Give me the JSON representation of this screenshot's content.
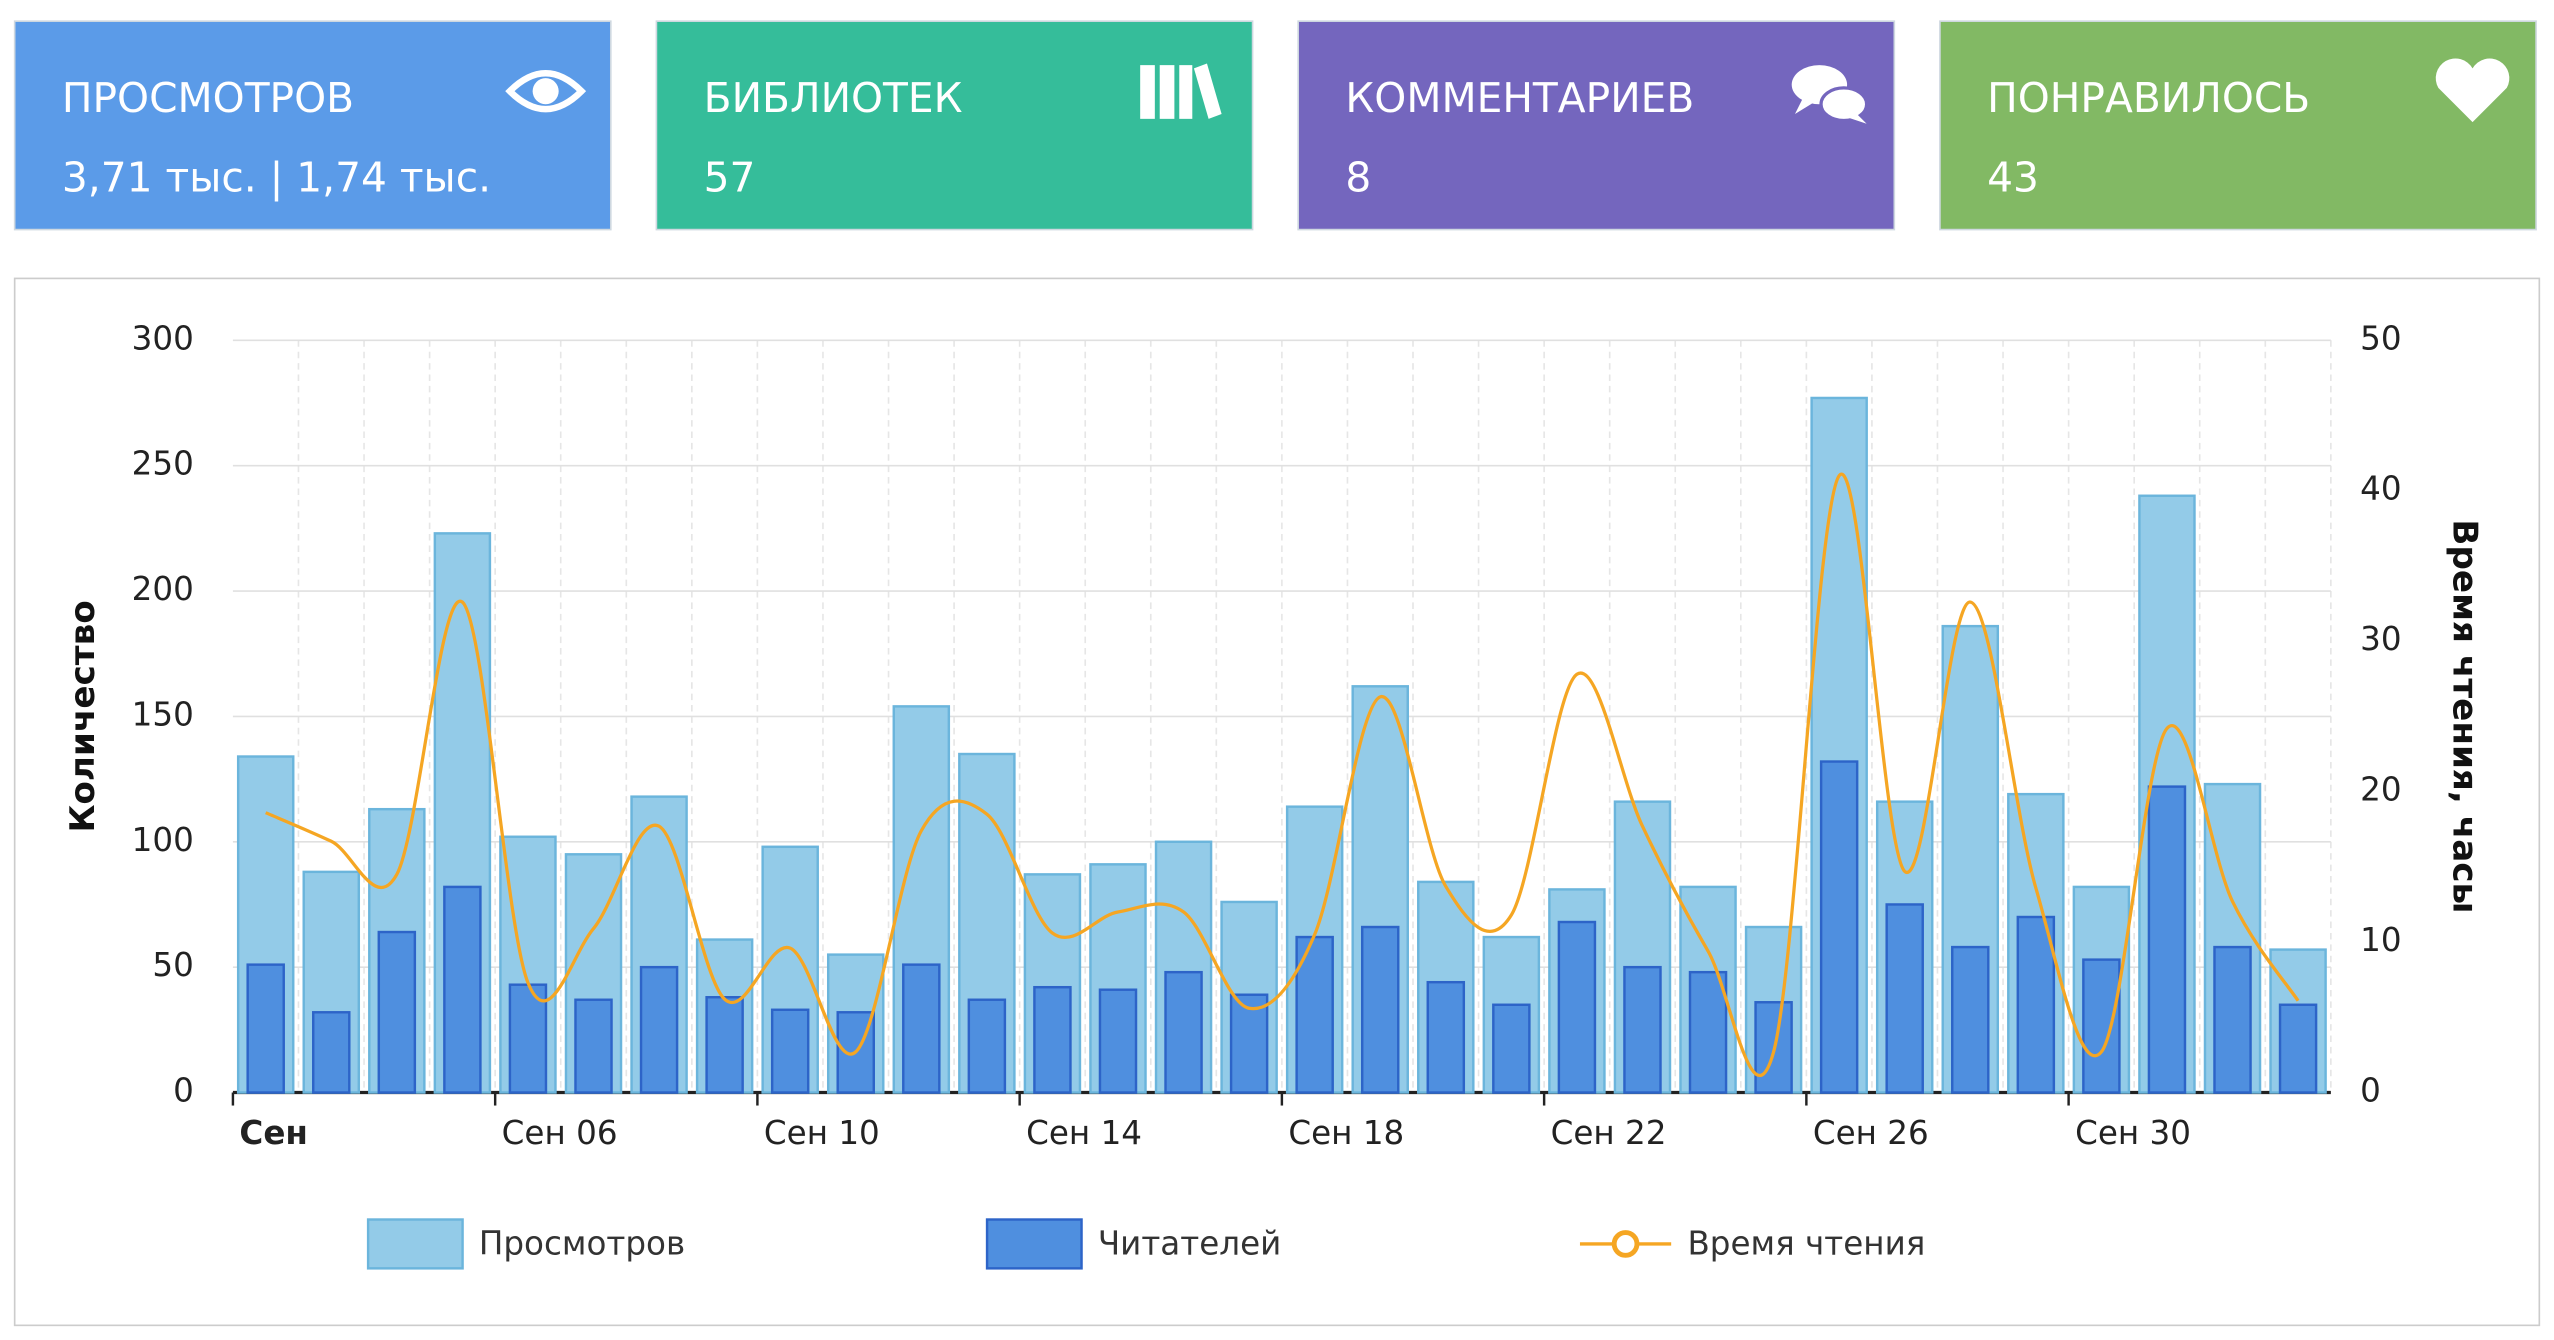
{
  "cards": [
    {
      "title": "ПРОСМОТРОВ",
      "value": "3,71 тыс. | 1,74 тыс."
    },
    {
      "title": "БИБЛИОТЕК",
      "value": "57"
    },
    {
      "title": "КОММЕНТАРИЕВ",
      "value": "8"
    },
    {
      "title": "ПОНРАВИЛОСЬ",
      "value": "43"
    }
  ],
  "chart_data": {
    "type": "bar",
    "y_label": "Количество",
    "y2_label": "Время чтения, часы",
    "categories": [
      "Сен",
      null,
      null,
      null,
      "Сен 06",
      null,
      null,
      null,
      "Сен 10",
      null,
      null,
      null,
      "Сен 14",
      null,
      null,
      null,
      "Сен 18",
      null,
      null,
      null,
      "Сен 22",
      null,
      null,
      null,
      "Сен 26",
      null,
      null,
      null,
      "Сен 30",
      null,
      null,
      null
    ],
    "series": [
      {
        "name": "Просмотров",
        "type": "bar",
        "color": "#93cbe8",
        "values": [
          134,
          88,
          113,
          223,
          102,
          95,
          118,
          61,
          98,
          55,
          154,
          135,
          87,
          91,
          100,
          76,
          114,
          162,
          84,
          62,
          81,
          116,
          82,
          66,
          277,
          116,
          186,
          119,
          82,
          238,
          123,
          57
        ]
      },
      {
        "name": "Читателей",
        "type": "bar",
        "color": "#4f8fdf",
        "values": [
          51,
          32,
          64,
          82,
          43,
          37,
          50,
          38,
          33,
          32,
          51,
          37,
          42,
          41,
          48,
          39,
          62,
          66,
          44,
          35,
          68,
          50,
          48,
          36,
          132,
          75,
          58,
          70,
          53,
          122,
          58,
          35
        ]
      },
      {
        "name": "Время чтения",
        "type": "line",
        "axis": "y2",
        "color": "#f5a623",
        "values": [
          18.6,
          16.7,
          14.5,
          32.6,
          7.3,
          10.9,
          17.7,
          6.2,
          9.6,
          2.7,
          17.4,
          18.5,
          10.6,
          12.0,
          12.0,
          5.6,
          10.5,
          26.3,
          13.7,
          11.8,
          27.8,
          17.7,
          9.4,
          2.7,
          41.0,
          14.7,
          32.6,
          13.6,
          2.7,
          24.2,
          12.7,
          6.1
        ]
      }
    ],
    "ylim": [
      0,
      300
    ],
    "yticks": [
      0,
      50,
      100,
      150,
      200,
      250,
      300
    ],
    "y2lim": [
      0,
      50
    ],
    "y2ticks": [
      0,
      10,
      20,
      30,
      40,
      50
    ],
    "grid": true,
    "legend": "bottom"
  }
}
